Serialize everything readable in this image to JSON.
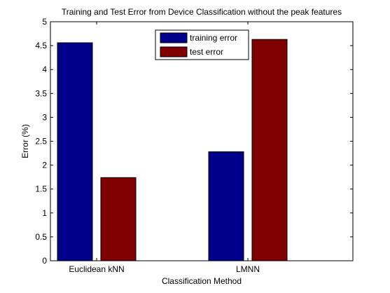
{
  "chart_data": {
    "type": "bar",
    "title": "Training and Test Error from Device Classification without the peak features",
    "xlabel": "Classification Method",
    "ylabel": "Error (%)",
    "categories": [
      "Euclidean kNN",
      "LMNN"
    ],
    "series": [
      {
        "name": "training error",
        "values": [
          4.56,
          2.28
        ],
        "color": "#00008b"
      },
      {
        "name": "test error",
        "values": [
          1.74,
          4.63
        ],
        "color": "#7f0000"
      }
    ],
    "ylim": [
      0,
      5
    ],
    "yticks": [
      "0",
      "0.5",
      "1",
      "1.5",
      "2",
      "2.5",
      "3",
      "3.5",
      "4",
      "4.5",
      "5"
    ],
    "grid": false,
    "legend_position": "top-center"
  }
}
